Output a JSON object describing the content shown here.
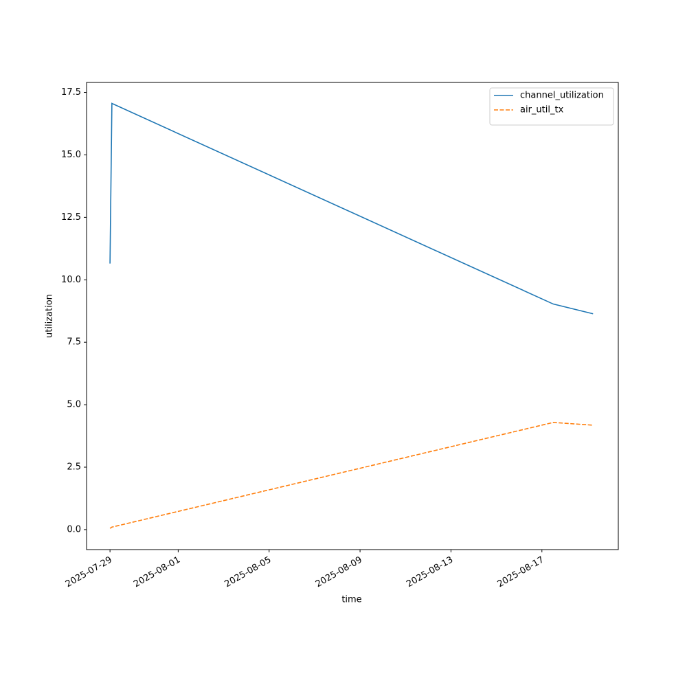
{
  "chart_data": {
    "type": "line",
    "x": [
      "2025-07-29T00:00",
      "2025-07-29T02:00",
      "2025-08-17T12:00",
      "2025-08-19T06:00"
    ],
    "series": [
      {
        "name": "channel_utilization",
        "color": "#1f77b4",
        "dash": "solid",
        "values": [
          10.65,
          17.06,
          9.03,
          8.64
        ]
      },
      {
        "name": "air_util_tx",
        "color": "#ff7f0e",
        "dash": "dashed",
        "values": [
          0.05,
          0.1,
          4.29,
          4.18
        ]
      }
    ],
    "xlabel": "time",
    "ylabel": "utilization",
    "xlim": [
      "2025-07-27T23:15",
      "2025-08-20T08:40"
    ],
    "xticks": [
      "2025-07-29",
      "2025-08-01",
      "2025-08-05",
      "2025-08-09",
      "2025-08-13",
      "2025-08-17"
    ],
    "ylim": [
      -0.8,
      17.9
    ],
    "yticks": [
      {
        "value": 0,
        "label": "0.0"
      },
      {
        "value": 2.5,
        "label": "2.5"
      },
      {
        "value": 5,
        "label": "5.0"
      },
      {
        "value": 7.5,
        "label": "7.5"
      },
      {
        "value": 10,
        "label": "10.0"
      },
      {
        "value": 12.5,
        "label": "12.5"
      },
      {
        "value": 15,
        "label": "15.0"
      },
      {
        "value": 17.5,
        "label": "17.5"
      }
    ],
    "legend": "upper right",
    "grid": false
  }
}
